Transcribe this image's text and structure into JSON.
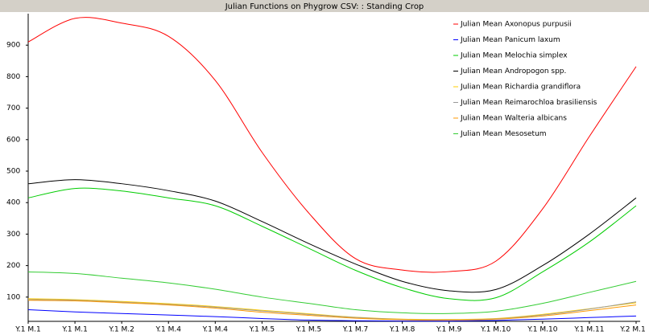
{
  "chart_data": {
    "type": "line",
    "title": "Julian Functions on Phygrow CSV: : Standing Crop",
    "categories": [
      "Y.1 M.1",
      "Y.1 M.1",
      "Y.1 M.2",
      "Y.1 M.4",
      "Y.1 M.4",
      "Y.1 M.5",
      "Y.1 M.5",
      "Y.1 M.7",
      "Y.1 M.8",
      "Y.1 M.9",
      "Y.1 M.10",
      "Y.1 M.10",
      "Y.1 M.11",
      "Y.2 M.1"
    ],
    "series": [
      {
        "name": "Julian Mean Axonopus purpusii",
        "color": "#ff0000",
        "values": [
          910,
          985,
          970,
          928,
          788,
          560,
          367,
          222,
          186,
          181,
          214,
          380,
          610,
          832
        ]
      },
      {
        "name": "Julian Mean Panicum laxum",
        "color": "#0000ff",
        "values": [
          60,
          53,
          48,
          43,
          38,
          32,
          27,
          25,
          24,
          24,
          26,
          30,
          35,
          40
        ]
      },
      {
        "name": "Julian Mean Melochia simplex",
        "color": "#00cc00",
        "values": [
          415,
          445,
          437,
          415,
          390,
          325,
          255,
          185,
          130,
          95,
          98,
          180,
          275,
          390
        ]
      },
      {
        "name": "Julian Mean Andropogon spp.",
        "color": "#000000",
        "values": [
          460,
          473,
          460,
          438,
          405,
          340,
          270,
          205,
          150,
          120,
          124,
          200,
          300,
          415
        ]
      },
      {
        "name": "Julian Mean Richardia grandiflora",
        "color": "#ffcc00",
        "values": [
          95,
          92,
          86,
          79,
          70,
          58,
          47,
          36,
          30,
          29,
          32,
          45,
          63,
          82
        ]
      },
      {
        "name": "Julian Mean Reimarochloa brasiliensis",
        "color": "#999999",
        "values": [
          92,
          90,
          84,
          77,
          68,
          56,
          45,
          35,
          29,
          28,
          31,
          43,
          62,
          85
        ]
      },
      {
        "name": "Julian Mean Walteria  albicans",
        "color": "#ff9900",
        "values": [
          90,
          88,
          82,
          75,
          65,
          52,
          42,
          33,
          28,
          27,
          30,
          40,
          57,
          75
        ]
      },
      {
        "name": "Julian Mean Mesosetum",
        "color": "#33cc33",
        "values": [
          180,
          175,
          160,
          145,
          125,
          100,
          80,
          60,
          50,
          48,
          55,
          80,
          115,
          150
        ]
      }
    ],
    "ylim": [
      23,
      1000
    ],
    "yticks": [
      100,
      200,
      300,
      400,
      500,
      600,
      700,
      800,
      900
    ],
    "grid": false,
    "legend": "top-right"
  }
}
